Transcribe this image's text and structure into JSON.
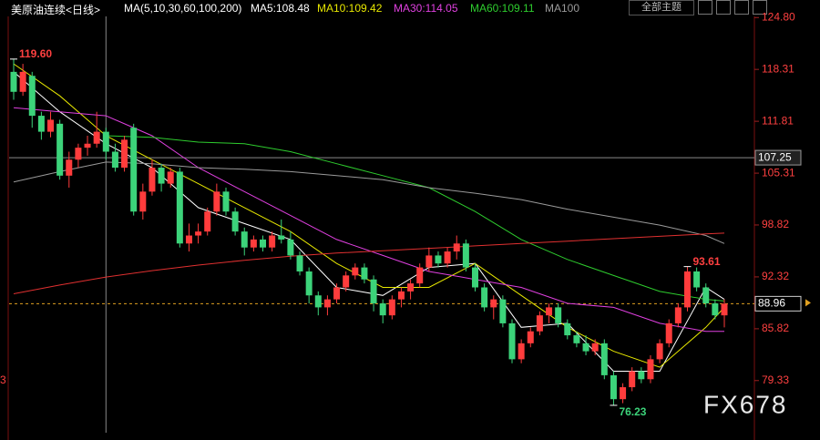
{
  "chart_data": {
    "type": "candlestick",
    "title": "美原油连续<日线>",
    "ma_title": "MA(5,10,30,60,100,200)",
    "ma_readouts": [
      "MA5:108.48",
      "MA10:109.42",
      "MA30:114.05",
      "MA60:109.11",
      "MA100"
    ],
    "theme_button": "全部主题",
    "watermark": "FX678",
    "left_label": "3",
    "up_color": "#ff3c3c",
    "down_color": "#3cd37a",
    "ylim": [
      72.8,
      127.0
    ],
    "yticks": [
      {
        "value": 124.8,
        "label": "124.80"
      },
      118.31,
      111.81,
      105.31,
      98.82,
      92.32,
      85.82,
      79.33
    ],
    "candles": [
      [
        118,
        119.6,
        114.5,
        115.5
      ],
      [
        115.5,
        119,
        115,
        118
      ],
      [
        117.5,
        118,
        111,
        112.5
      ],
      [
        112.5,
        113,
        109.5,
        110.5
      ],
      [
        110.5,
        113,
        109.8,
        112
      ],
      [
        111.5,
        112,
        104.5,
        105
      ],
      [
        105,
        108,
        103.5,
        107
      ],
      [
        107,
        109,
        106,
        108.5
      ],
      [
        108.5,
        110,
        107.5,
        109
      ],
      [
        109,
        113,
        108.5,
        110.5
      ],
      [
        110.5,
        111,
        107,
        108
      ],
      [
        108,
        109,
        105.5,
        106
      ],
      [
        106,
        110,
        105.5,
        109.5
      ],
      [
        111,
        111.5,
        100,
        100.5
      ],
      [
        100.5,
        104,
        99.5,
        103
      ],
      [
        103,
        107,
        102.5,
        106
      ],
      [
        106,
        106.5,
        103,
        104
      ],
      [
        104,
        106,
        103.5,
        105.5
      ],
      [
        105.5,
        106,
        96,
        96.5
      ],
      [
        96.5,
        99,
        95.5,
        97.5
      ],
      [
        97.5,
        99,
        96.5,
        98
      ],
      [
        98,
        101,
        97.5,
        100.5
      ],
      [
        100.5,
        104,
        100,
        103
      ],
      [
        103,
        103.5,
        100,
        100.5
      ],
      [
        100.5,
        101,
        97.5,
        98
      ],
      [
        98,
        98.5,
        95,
        96
      ],
      [
        96,
        97.5,
        95.5,
        97
      ],
      [
        97,
        97.5,
        95.5,
        96
      ],
      [
        96,
        98,
        95.5,
        97.5
      ],
      [
        97.5,
        99.5,
        96.5,
        97
      ],
      [
        97,
        98,
        94.5,
        95
      ],
      [
        95,
        95.5,
        92.5,
        93
      ],
      [
        93,
        93.5,
        89,
        90
      ],
      [
        90,
        90.5,
        87.5,
        88.5
      ],
      [
        88.5,
        90,
        87.5,
        89.5
      ],
      [
        89.5,
        91.5,
        89,
        91
      ],
      [
        91,
        93,
        90.5,
        92.5
      ],
      [
        92.5,
        94,
        92,
        93.5
      ],
      [
        93.5,
        94,
        91.5,
        92
      ],
      [
        92,
        92.5,
        88,
        89
      ],
      [
        89,
        89.5,
        86.5,
        87.5
      ],
      [
        87.5,
        90,
        87,
        89.5
      ],
      [
        89.5,
        91,
        88.5,
        90.5
      ],
      [
        90.5,
        92,
        89.5,
        91.5
      ],
      [
        91.5,
        94,
        91,
        93.5
      ],
      [
        93.5,
        96,
        93,
        95
      ],
      [
        95,
        95.5,
        93.5,
        94
      ],
      [
        94,
        96,
        93.5,
        95.5
      ],
      [
        95.5,
        97.5,
        94.5,
        96.5
      ],
      [
        96.5,
        97,
        93,
        93.5
      ],
      [
        93.5,
        94,
        90.5,
        91
      ],
      [
        91,
        91.5,
        88,
        88.5
      ],
      [
        88.5,
        90,
        87,
        89.5
      ],
      [
        89.5,
        90,
        86,
        86.5
      ],
      [
        86.5,
        87,
        81.5,
        82
      ],
      [
        82,
        84.5,
        81.5,
        84
      ],
      [
        84,
        86,
        83.5,
        85.5
      ],
      [
        85.5,
        88,
        85,
        87.5
      ],
      [
        87.5,
        89,
        86.5,
        88.5
      ],
      [
        88.5,
        89,
        86,
        86.5
      ],
      [
        86.5,
        87,
        84.5,
        85
      ],
      [
        85,
        85.5,
        83.5,
        84
      ],
      [
        84,
        85,
        82.5,
        83
      ],
      [
        83,
        84.5,
        82.5,
        84
      ],
      [
        84,
        84.5,
        79.5,
        80
      ],
      [
        80,
        80.5,
        76.23,
        77
      ],
      [
        77,
        79,
        76.5,
        78.5
      ],
      [
        78.5,
        81,
        78,
        80.5
      ],
      [
        80.5,
        81,
        79,
        79.5
      ],
      [
        79.5,
        82.5,
        79,
        82
      ],
      [
        82,
        84.5,
        81.5,
        84
      ],
      [
        84,
        87,
        83.5,
        86.5
      ],
      [
        86.5,
        89,
        86,
        88.5
      ],
      [
        88.5,
        93.61,
        88,
        93
      ],
      [
        93,
        93.5,
        90.5,
        91
      ],
      [
        91,
        91.5,
        88.5,
        89
      ],
      [
        89,
        89.5,
        87,
        87.5
      ],
      [
        87.5,
        89.5,
        86,
        88.96
      ]
    ],
    "ma_x": [
      0,
      5,
      10,
      15,
      20,
      25,
      30,
      35,
      40,
      45,
      50,
      55,
      60,
      65,
      70,
      75,
      77
    ],
    "series": [
      {
        "name": "MA5",
        "color": "#ffffff",
        "values": [
          118,
          113,
          109,
          106,
          101,
          99,
          97,
          91,
          90,
          93.5,
          94,
          86,
          86.5,
          80.5,
          80.5,
          91,
          89.5
        ]
      },
      {
        "name": "MA10",
        "color": "#e8e800",
        "values": [
          119,
          115,
          110,
          107,
          104,
          101,
          98,
          94,
          91,
          91,
          94,
          90,
          86,
          83,
          81,
          86,
          88.5
        ]
      },
      {
        "name": "MA30",
        "color": "#e040e0",
        "values": [
          113.5,
          113,
          112.5,
          110,
          106,
          103,
          100,
          97,
          95,
          93,
          92,
          91,
          89,
          88.5,
          86.5,
          85.5,
          85.5
        ]
      },
      {
        "name": "MA60",
        "color": "#2ecc2e",
        "values": [
          null,
          null,
          110,
          109.8,
          109.2,
          109,
          108,
          106.5,
          105,
          103.5,
          100.5,
          97,
          94.5,
          92.5,
          90.5,
          89.5,
          89.3
        ]
      },
      {
        "name": "MA100",
        "color": "#9a9a9a",
        "values": [
          104.2,
          105.5,
          106.7,
          106.5,
          106,
          105.8,
          105.5,
          105,
          104.5,
          103.5,
          102.8,
          102,
          100.8,
          99.8,
          98.8,
          97.5,
          96.5
        ]
      },
      {
        "name": "MA200",
        "color": "#e03030",
        "values": [
          90.2,
          91.3,
          92.3,
          93.1,
          93.8,
          94.4,
          94.9,
          95.3,
          95.6,
          95.9,
          96.2,
          96.5,
          96.8,
          97.1,
          97.4,
          97.7,
          97.8
        ]
      }
    ],
    "annotations": [
      {
        "value": 119.6,
        "label": "119.60",
        "at": "high"
      },
      {
        "value": 93.61,
        "label": "93.61",
        "at": "high"
      },
      {
        "value": 76.23,
        "label": "76.23",
        "at": "low"
      }
    ],
    "crosshair": {
      "value": 107.25,
      "label": "107.25",
      "candle": 10
    },
    "last_price": {
      "value": 88.96,
      "label": "88.96"
    }
  }
}
